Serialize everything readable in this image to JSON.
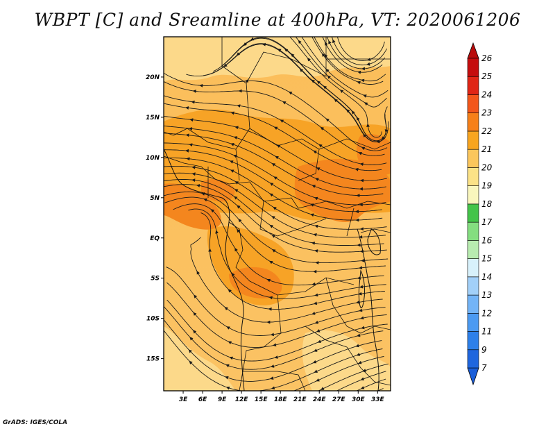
{
  "title": "WBPT [C] and Sreamline at 400hPa, VT: 2020061206",
  "footer": "GrADS: IGES/COLA",
  "map": {
    "lon_ticks": [
      "3E",
      "6E",
      "9E",
      "12E",
      "15E",
      "18E",
      "21E",
      "24E",
      "27E",
      "30E",
      "33E"
    ],
    "lat_ticks": [
      "20N",
      "15N",
      "10N",
      "5N",
      "EQ",
      "5S",
      "10S",
      "15S"
    ],
    "lon_range": [
      0,
      35
    ],
    "lat_range": [
      -19,
      25
    ],
    "shaded_field": "WBPT [C]",
    "overlay": "streamlines at 400hPa"
  },
  "colorbar": {
    "labels": [
      "7",
      "9",
      "11",
      "12",
      "13",
      "14",
      "15",
      "16",
      "17",
      "18",
      "19",
      "20",
      "21",
      "22",
      "23",
      "24",
      "25",
      "26"
    ],
    "colors": [
      "#1f66de",
      "#2d80ea",
      "#4b9af2",
      "#73b4f7",
      "#a2d0f9",
      "#d8f1fb",
      "#b8ecb0",
      "#84de80",
      "#44c44a",
      "#f9f6bd",
      "#fbe287",
      "#fbc65c",
      "#f8a51f",
      "#f68019",
      "#f3571b",
      "#e02616",
      "#c50d0e"
    ],
    "top_arrow_color": "#b90c0c",
    "bottom_arrow_color": "#1a5ed9"
  }
}
